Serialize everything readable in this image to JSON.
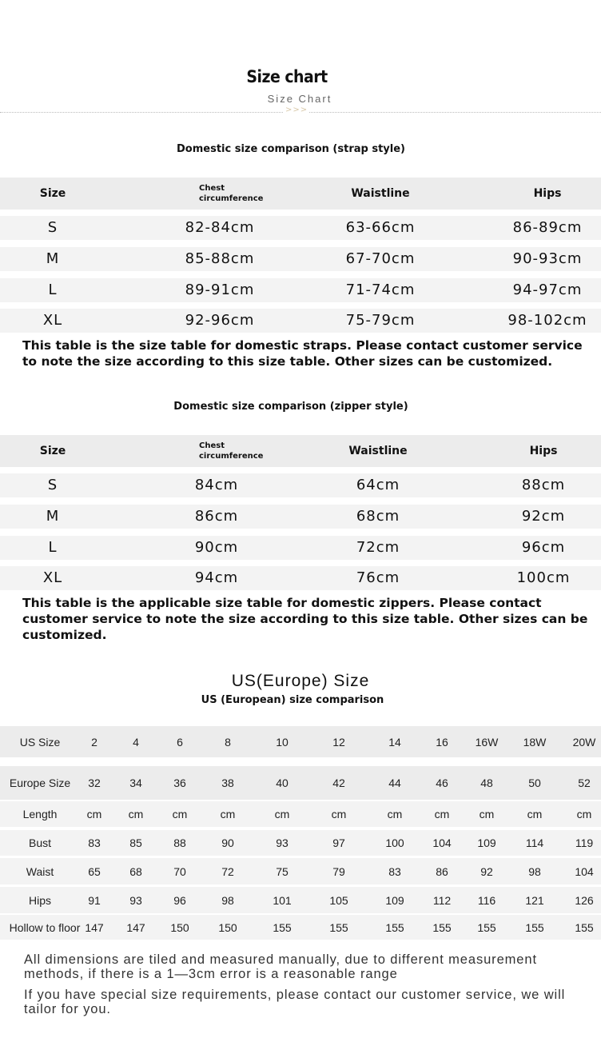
{
  "header": {
    "title": "Size chart",
    "subtitle": "Size Chart",
    "arrows": ">>>"
  },
  "strap": {
    "title": "Domestic size comparison (strap style)",
    "headers": [
      "Size",
      "Chest\ncircumference",
      "Waistline",
      "Hips"
    ],
    "rows": [
      [
        "S",
        "82-84cm",
        "63-66cm",
        "86-89cm"
      ],
      [
        "M",
        "85-88cm",
        "67-70cm",
        "90-93cm"
      ],
      [
        "L",
        "89-91cm",
        "71-74cm",
        "94-97cm"
      ],
      [
        "XL",
        "92-96cm",
        "75-79cm",
        "98-102cm"
      ]
    ],
    "note": "This table is the size table for domestic straps. Please contact customer service to note the size according to this size table. Other sizes can be customized."
  },
  "zipper": {
    "title": "Domestic size comparison (zipper style)",
    "headers": [
      "Size",
      "Chest\ncircumference",
      "Waistline",
      "Hips"
    ],
    "rows": [
      [
        "S",
        "84cm",
        "64cm",
        "88cm"
      ],
      [
        "M",
        "86cm",
        "68cm",
        "92cm"
      ],
      [
        "L",
        "90cm",
        "72cm",
        "96cm"
      ],
      [
        "XL",
        "94cm",
        "76cm",
        "100cm"
      ]
    ],
    "note": "This table is the applicable size table for domestic zippers. Please contact customer service to note the size according to this size table. Other sizes can be customized."
  },
  "us": {
    "title": "US(Europe) Size",
    "subtitle": "US (European) size comparison",
    "rows": [
      [
        "US Size",
        "2",
        "4",
        "6",
        "8",
        "10",
        "12",
        "14",
        "16",
        "16W",
        "18W",
        "20W"
      ],
      [
        "Europe Size",
        "32",
        "34",
        "36",
        "38",
        "40",
        "42",
        "44",
        "46",
        "48",
        "50",
        "52"
      ],
      [
        "Length",
        "cm",
        "cm",
        "cm",
        "cm",
        "cm",
        "cm",
        "cm",
        "cm",
        "cm",
        "cm",
        "cm"
      ],
      [
        "Bust",
        "83",
        "85",
        "88",
        "90",
        "93",
        "97",
        "100",
        "104",
        "109",
        "114",
        "119"
      ],
      [
        "Waist",
        "65",
        "68",
        "70",
        "72",
        "75",
        "79",
        "83",
        "86",
        "92",
        "98",
        "104"
      ],
      [
        "Hips",
        "91",
        "93",
        "96",
        "98",
        "101",
        "105",
        "109",
        "112",
        "116",
        "121",
        "126"
      ],
      [
        "Hollow to floor",
        "147",
        "147",
        "150",
        "150",
        "155",
        "155",
        "155",
        "155",
        "155",
        "155",
        "155"
      ]
    ]
  },
  "footer": {
    "note1": "All dimensions are tiled and measured manually, due to different measurement methods, if there is a 1—3cm error is a reasonable range",
    "note2": "If you have special size requirements, please contact our customer service, we will tailor for you."
  }
}
